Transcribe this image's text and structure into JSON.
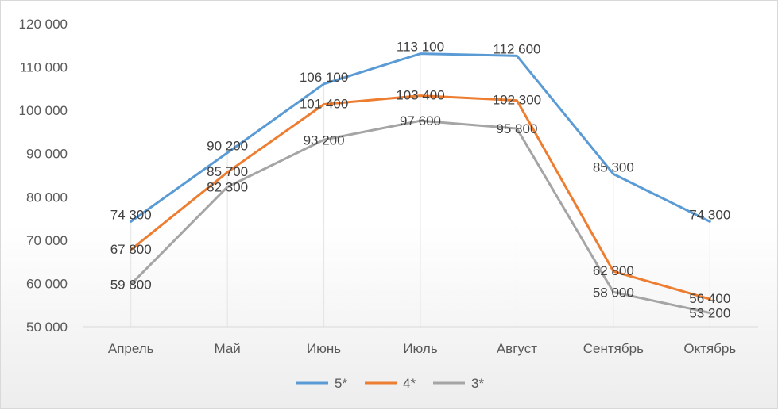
{
  "chart_data": {
    "type": "line",
    "categories": [
      "Апрель",
      "Май",
      "Июнь",
      "Июль",
      "Август",
      "Сентябрь",
      "Октябрь"
    ],
    "series": [
      {
        "name": "5*",
        "color": "#5b9bd5",
        "values": [
          74300,
          90200,
          106100,
          113100,
          112600,
          85300,
          74300
        ],
        "labels": [
          "74 300",
          "90 200",
          "106 100",
          "113 100",
          "112 600",
          "85 300",
          "74 300"
        ]
      },
      {
        "name": "4*",
        "color": "#ed7d31",
        "values": [
          67800,
          85700,
          101400,
          103400,
          102300,
          62800,
          56400
        ],
        "labels": [
          "67 800",
          "85 700",
          "101 400",
          "103 400",
          "102 300",
          "62 800",
          "56 400"
        ]
      },
      {
        "name": "3*",
        "color": "#a5a5a5",
        "values": [
          59800,
          82300,
          93200,
          97600,
          95800,
          58000,
          53200
        ],
        "labels": [
          "59 800",
          "82 300",
          "93 200",
          "97 600",
          "95 800",
          "58 000",
          "53 200"
        ]
      }
    ],
    "ylim": [
      50000,
      120000
    ],
    "yticks": [
      50000,
      60000,
      70000,
      80000,
      90000,
      100000,
      110000,
      120000
    ],
    "ytick_labels": [
      "50 000",
      "60 000",
      "70 000",
      "80 000",
      "90 000",
      "100 000",
      "110 000",
      "120 000"
    ],
    "grid": "vertical",
    "legend_position": "bottom",
    "data_labels": true
  }
}
